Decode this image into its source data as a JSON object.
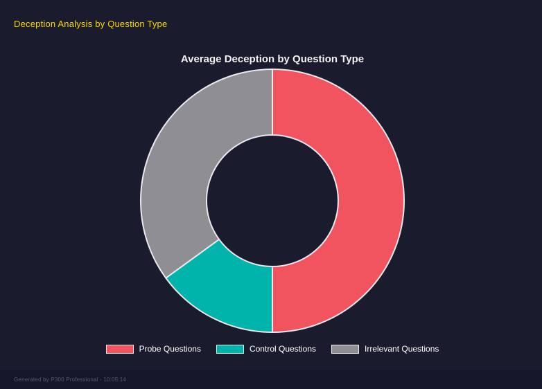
{
  "page": {
    "title": "Deception Analysis by Question Type",
    "footer": "Generated by P300 Professional - 10:05:14"
  },
  "chart_data": {
    "type": "pie",
    "variant": "doughnut",
    "title": "Average Deception by Question Type",
    "labels": [
      "Probe Questions",
      "Control Questions",
      "Irrelevant Questions"
    ],
    "values": [
      50,
      15,
      35
    ],
    "colors": [
      "#f2545f",
      "#00b3ab",
      "#8e8e93"
    ],
    "segment_border_color": "#e9e9ef",
    "segment_border_width": 2,
    "start_angle_deg": 0,
    "cutout_ratio": 0.5,
    "legend_position": "bottom",
    "background": "#1a1b2c"
  }
}
